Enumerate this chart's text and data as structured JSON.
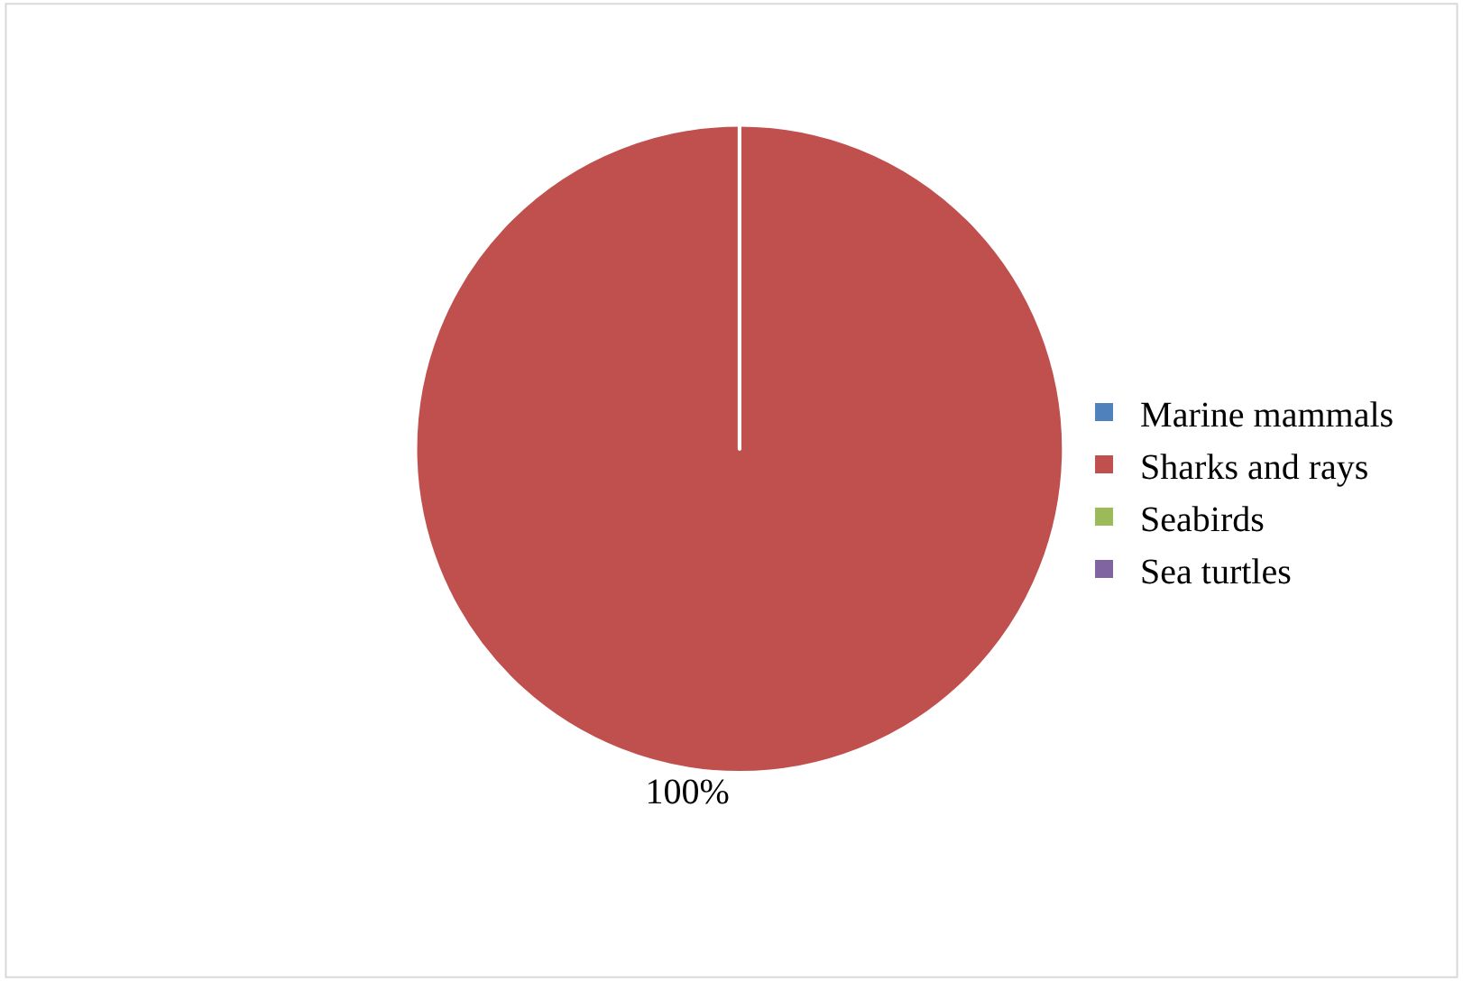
{
  "chart_data": {
    "type": "pie",
    "categories": [
      "Marine mammals",
      "Sharks and rays",
      "Seabirds",
      "Sea turtles"
    ],
    "values": [
      0,
      100,
      0,
      0
    ],
    "colors": [
      "#4f81bd",
      "#c0504d",
      "#9bbb59",
      "#8064a2"
    ],
    "value_labels": [
      null,
      "100%",
      null,
      null
    ],
    "legend": "right"
  }
}
